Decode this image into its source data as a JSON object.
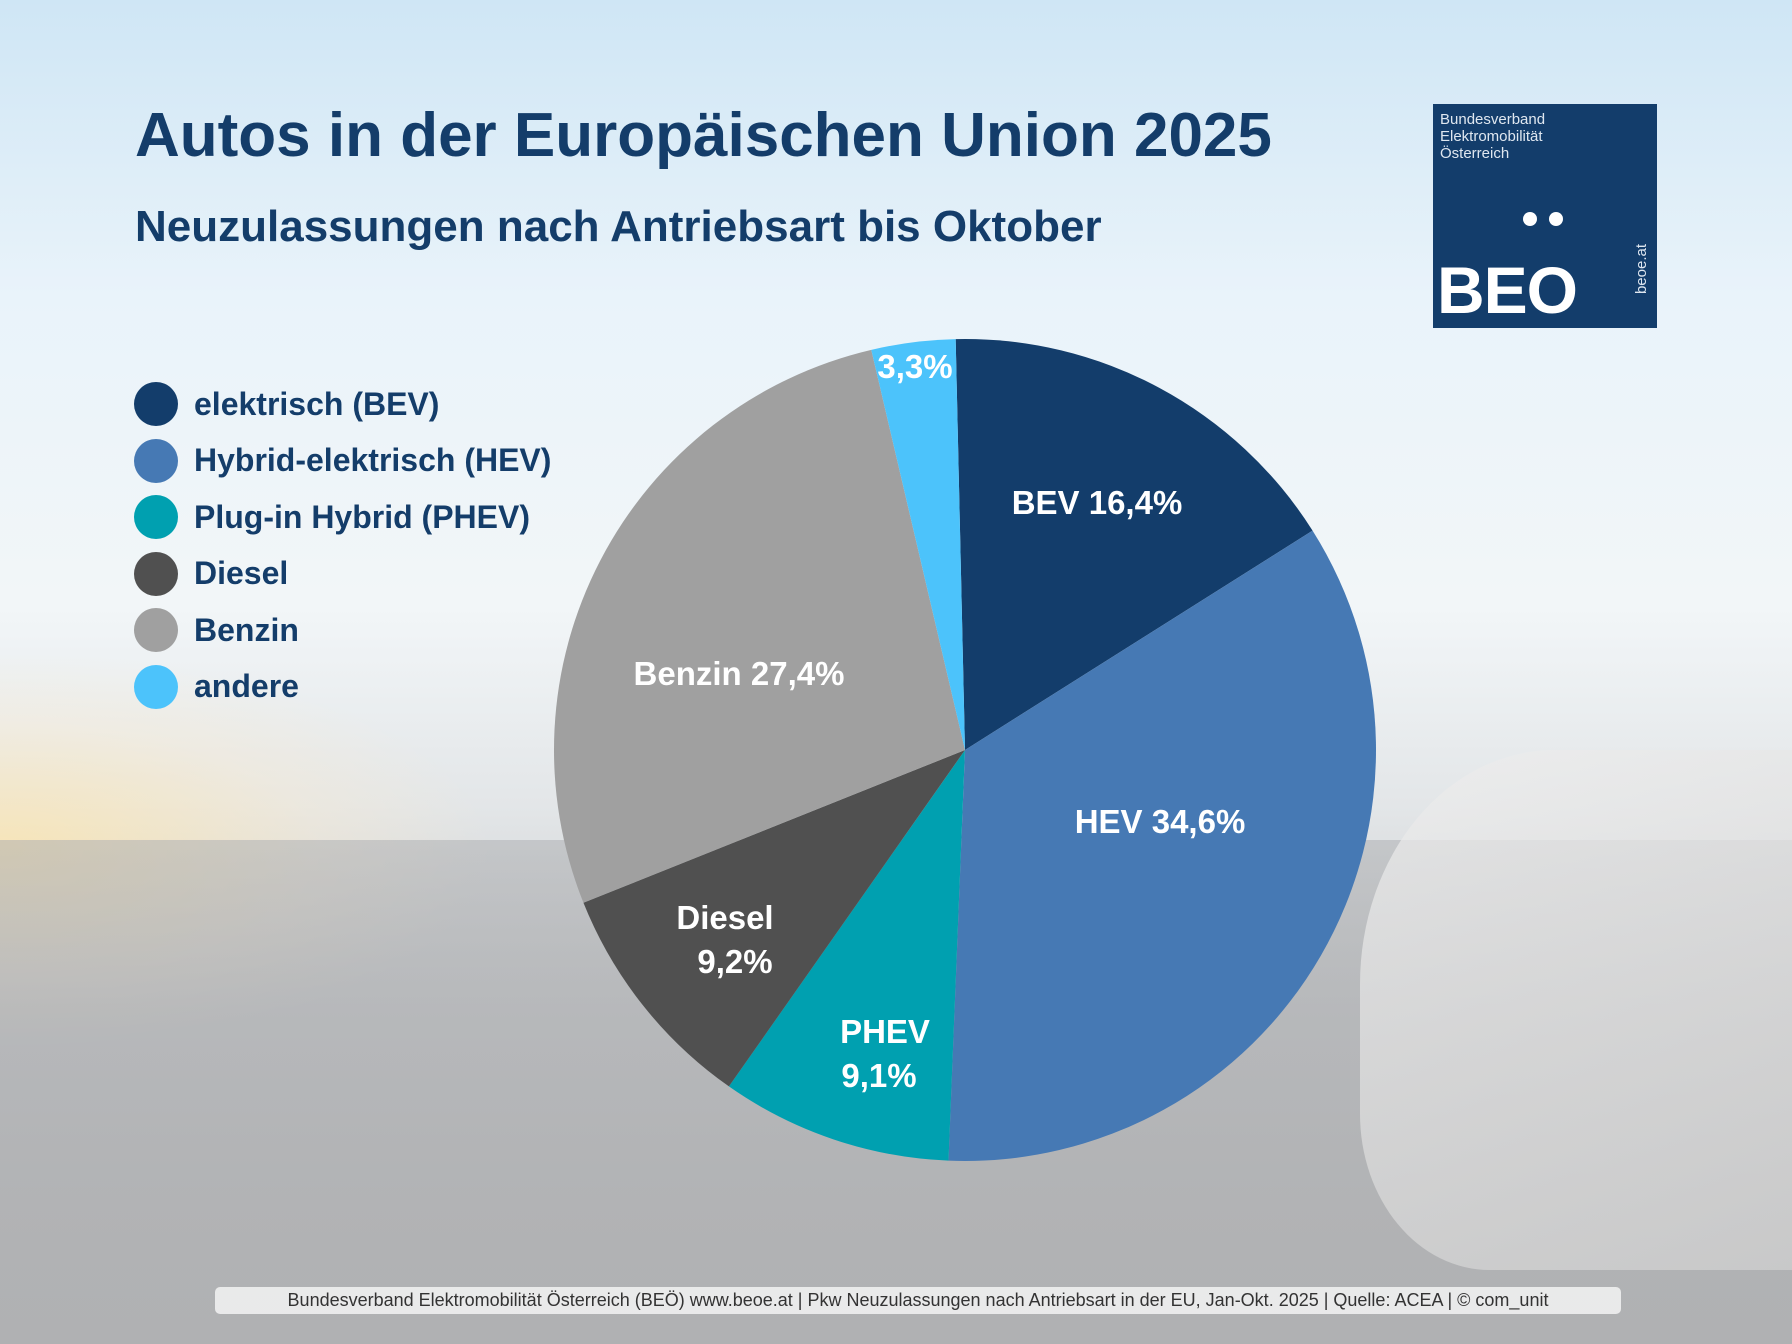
{
  "title": "Autos in der Europäischen Union 2025",
  "subtitle": "Neuzulassungen nach Antriebsart bis Oktober",
  "logo": {
    "lines": [
      "Bundesverband",
      "Elektromobilität",
      "Österreich"
    ],
    "brand": "BEO",
    "url": "beoe.at",
    "color": "#133d6b"
  },
  "legend": [
    {
      "label": "elektrisch (BEV)",
      "color": "#133d6b"
    },
    {
      "label": "Hybrid-elektrisch (HEV)",
      "color": "#4679b4"
    },
    {
      "label": "Plug-in Hybrid (PHEV)",
      "color": "#00a0b0"
    },
    {
      "label": "Diesel",
      "color": "#505050"
    },
    {
      "label": "Benzin",
      "color": "#a0a0a0"
    },
    {
      "label": "andere",
      "color": "#4cc3fb"
    }
  ],
  "footer": "Bundesverband Elektromobilität Österreich (BEÖ) www.beoe.at | Pkw Neuzulassungen nach Antriebsart in der EU, Jan-Okt. 2025 | Quelle: ACEA | © com_unit",
  "chart_data": {
    "type": "pie",
    "title": "Autos in der Europäischen Union 2025",
    "subtitle": "Neuzulassungen nach Antriebsart bis Oktober",
    "legend_position": "left",
    "direction": "clockwise from top",
    "slices": [
      {
        "name": "BEV",
        "legend": "elektrisch (BEV)",
        "value": 16.4,
        "label": [
          "BEV 16,4%"
        ],
        "color": "#133d6b"
      },
      {
        "name": "HEV",
        "legend": "Hybrid-elektrisch (HEV)",
        "value": 34.6,
        "label": [
          "HEV 34,6%"
        ],
        "color": "#4679b4"
      },
      {
        "name": "PHEV",
        "legend": "Plug-in Hybrid (PHEV)",
        "value": 9.1,
        "label": [
          "PHEV",
          "9,1%"
        ],
        "color": "#00a0b0"
      },
      {
        "name": "Diesel",
        "legend": "Diesel",
        "value": 9.2,
        "label": [
          "Diesel",
          "9,2%"
        ],
        "color": "#505050"
      },
      {
        "name": "Benzin",
        "legend": "Benzin",
        "value": 27.4,
        "label": [
          "Benzin 27,4%"
        ],
        "color": "#a0a0a0"
      },
      {
        "name": "andere",
        "legend": "andere",
        "value": 3.3,
        "label": [
          "3,3%"
        ],
        "color": "#4cc3fb"
      }
    ]
  }
}
